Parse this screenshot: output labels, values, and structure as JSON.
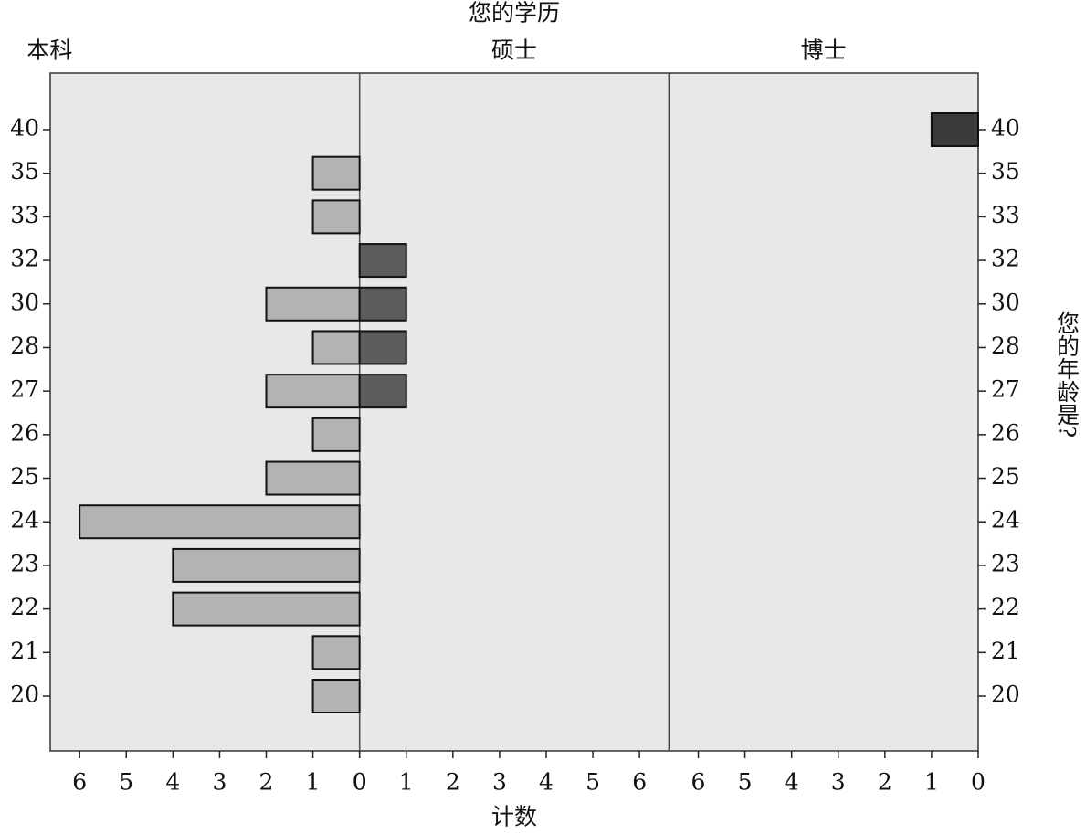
{
  "chart_data": {
    "type": "bar",
    "title": "您的学历",
    "x_label": "计数",
    "y_label": "您的年龄是?",
    "categories": [
      "20",
      "21",
      "22",
      "23",
      "24",
      "25",
      "26",
      "27",
      "28",
      "30",
      "32",
      "33",
      "35",
      "40"
    ],
    "series": [
      {
        "name": "本科",
        "color": "#b3b3b3",
        "values": [
          1,
          1,
          4,
          4,
          6,
          2,
          1,
          2,
          1,
          2,
          0,
          1,
          1,
          0
        ]
      },
      {
        "name": "硕士",
        "color": "#5c5c5c",
        "values": [
          0,
          0,
          0,
          0,
          0,
          0,
          0,
          1,
          1,
          1,
          1,
          0,
          0,
          0
        ]
      },
      {
        "name": "博士",
        "color": "#3a3a3a",
        "values": [
          0,
          0,
          0,
          0,
          0,
          0,
          0,
          0,
          0,
          0,
          0,
          0,
          0,
          1
        ]
      }
    ],
    "xlim": [
      0,
      6.63
    ],
    "xticks": [
      0,
      1,
      2,
      3,
      4,
      5,
      6
    ]
  }
}
